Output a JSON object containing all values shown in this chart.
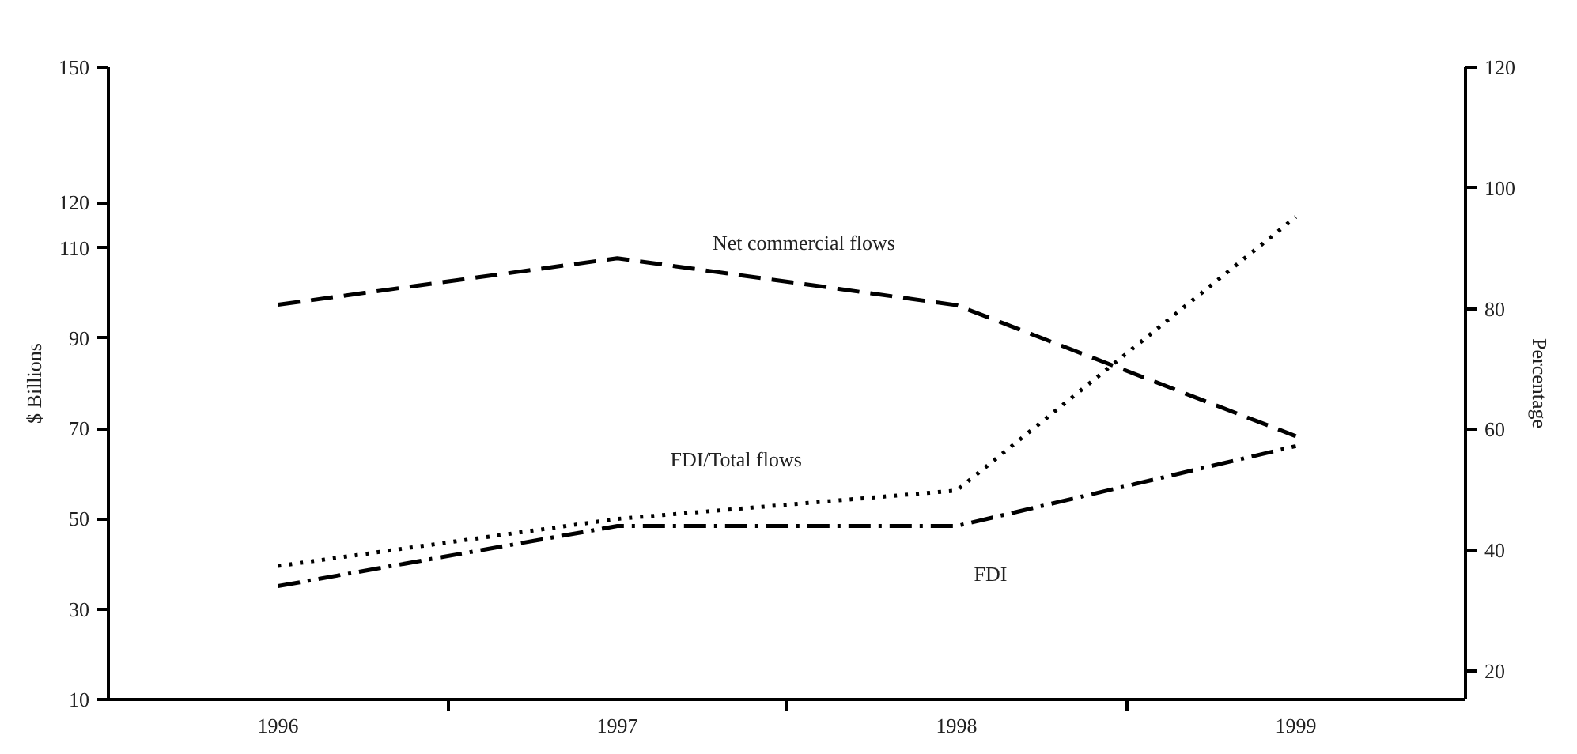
{
  "chart_data": {
    "type": "line",
    "ylabel": "$ Billions",
    "y2label": "Percentage",
    "categories": [
      "1996",
      "1997",
      "1998",
      "1999"
    ],
    "series": [
      {
        "name": "Net commercial flows",
        "color": "#000000",
        "line_style": "dashed",
        "values": [
          97.4,
          107.7,
          97.3,
          68.3
        ]
      },
      {
        "name": "FDI",
        "color": "#000000",
        "line_style": "dashdot",
        "values": [
          35.1,
          48.4,
          48.4,
          66.1
        ]
      },
      {
        "name": "FDI/Total flows",
        "color": "#000000",
        "line_style": "dotted",
        "axis": "y2",
        "values": [
          37.4,
          45.2,
          49.9,
          95.2
        ]
      }
    ],
    "ylim": [
      10,
      150
    ],
    "yticks": [
      10,
      30,
      50,
      70,
      90,
      110,
      120,
      150
    ],
    "y2lim": [
      15.3,
      120
    ],
    "y2ticks": [
      20,
      40,
      60,
      80,
      100,
      120
    ],
    "grid": false,
    "legend": false,
    "marker": "none"
  }
}
